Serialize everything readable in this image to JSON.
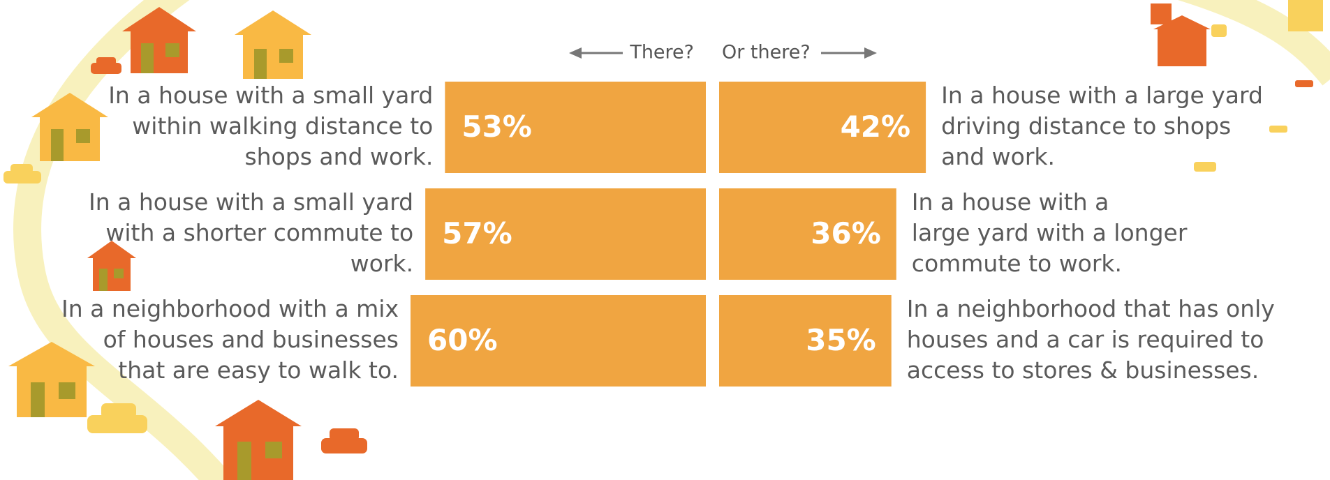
{
  "chart_data": {
    "type": "bar",
    "series": [
      {
        "name": "There?",
        "color": "#f0a541",
        "values": [
          53,
          57,
          60
        ],
        "value_labels": [
          "53%",
          "57%",
          "60%"
        ],
        "labels": [
          [
            "In a house with a small yard",
            "within walking distance to",
            "shops and work."
          ],
          [
            "In a house with a small yard",
            "with a shorter commute to",
            "work."
          ],
          [
            "In a neighborhood with a mix",
            "of houses and businesses",
            "that are easy to walk to."
          ]
        ]
      },
      {
        "name": "Or there?",
        "color": "#f0a541",
        "values": [
          42,
          36,
          35
        ],
        "value_labels": [
          "42%",
          "36%",
          "35%"
        ],
        "labels": [
          [
            "In a house with a large yard",
            "driving distance to shops",
            "and work."
          ],
          [
            "In a house with a",
            "large yard with a longer",
            "commute to work."
          ],
          [
            "In a neighborhood that has only",
            "houses and a car is required to",
            "access to stores & businesses."
          ]
        ]
      }
    ]
  }
}
